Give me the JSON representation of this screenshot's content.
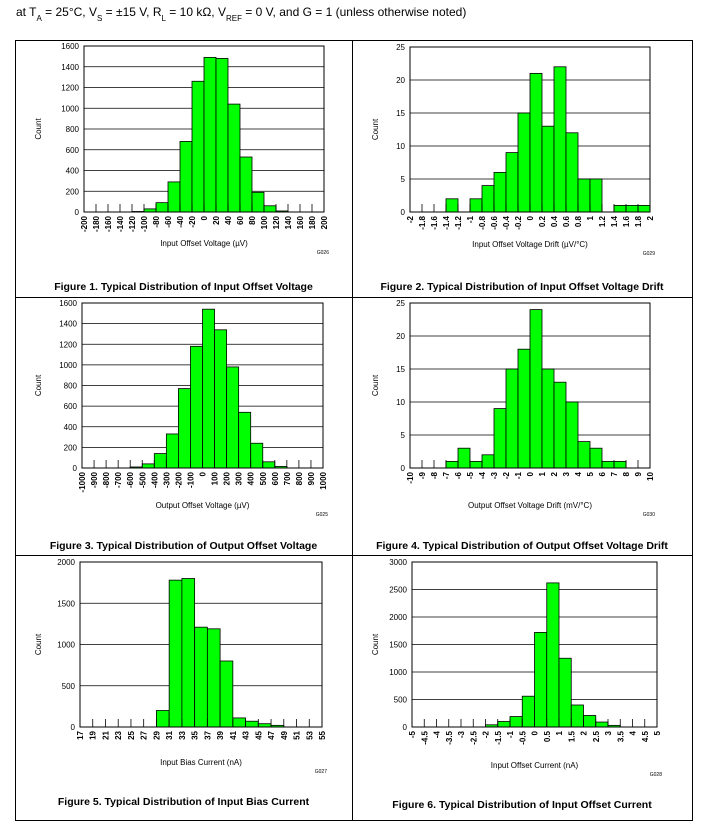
{
  "header": [
    "at T",
    "A",
    " = 25°C, V",
    "S",
    " = ±15 V, R",
    "L",
    " = 10 kΩ, V",
    "REF",
    " = 0 V, and G = 1 (unless otherwise noted)"
  ],
  "chart_data": [
    {
      "type": "histogram",
      "title": "Figure 1. Typical Distribution of Input Offset Voltage",
      "xlabel": "Input Offset Voltage (µV)",
      "ylabel": "Count",
      "annotation": "G026",
      "color": "#00ff00",
      "bins": [
        -200,
        -180,
        -160,
        -140,
        -120,
        -100,
        -80,
        -60,
        -40,
        -20,
        0,
        20,
        40,
        60,
        80,
        100,
        120,
        140,
        160,
        180,
        200
      ],
      "values": [
        0,
        0,
        0,
        0,
        5,
        30,
        90,
        290,
        680,
        1260,
        1490,
        1480,
        1040,
        530,
        190,
        60,
        10,
        0,
        0,
        0
      ],
      "xlim": [
        -200,
        200
      ],
      "xticks": [
        -200,
        -180,
        -160,
        -140,
        -120,
        -100,
        -80,
        -60,
        -40,
        -20,
        0,
        20,
        40,
        60,
        80,
        100,
        120,
        140,
        160,
        180,
        200
      ],
      "ylim": [
        0,
        1600
      ],
      "yticks": [
        0,
        200,
        400,
        600,
        800,
        1000,
        1200,
        1400,
        1600
      ],
      "grid": true
    },
    {
      "type": "histogram",
      "title": "Figure 2. Typical Distribution of Input Offset Voltage Drift",
      "xlabel": "Input Offset Voltage Drift (µV/°C)",
      "ylabel": "Count",
      "annotation": "G029",
      "color": "#00ff00",
      "bins": [
        -2,
        -1.8,
        -1.6,
        -1.4,
        -1.2,
        -1,
        -0.8,
        -0.6,
        -0.4,
        -0.2,
        0,
        0.2,
        0.4,
        0.6,
        0.8,
        1,
        1.2,
        1.4,
        1.6,
        1.8,
        2
      ],
      "values": [
        0,
        0,
        0,
        2,
        0,
        2,
        4,
        6,
        9,
        15,
        21,
        13,
        22,
        12,
        5,
        5,
        0,
        1,
        1,
        1
      ],
      "xlim": [
        -2,
        2
      ],
      "xticks": [
        -2,
        -1.8,
        -1.6,
        -1.4,
        -1.2,
        -1,
        -0.8,
        -0.6,
        -0.4,
        -0.2,
        0,
        0.2,
        0.4,
        0.6,
        0.8,
        1,
        1.2,
        1.4,
        1.6,
        1.8,
        2
      ],
      "ylim": [
        0,
        25
      ],
      "yticks": [
        0,
        5,
        10,
        15,
        20,
        25
      ],
      "grid": true
    },
    {
      "type": "histogram",
      "title": "Figure 3. Typical Distribution of Output Offset Voltage",
      "xlabel": "Output Offset Voltage (µV)",
      "ylabel": "Count",
      "annotation": "G025",
      "color": "#00ff00",
      "bins": [
        -1000,
        -900,
        -800,
        -700,
        -600,
        -500,
        -400,
        -300,
        -200,
        -100,
        0,
        100,
        200,
        300,
        400,
        500,
        600,
        700,
        800,
        900,
        1000
      ],
      "values": [
        0,
        0,
        0,
        0,
        10,
        40,
        140,
        330,
        770,
        1180,
        1540,
        1340,
        980,
        540,
        240,
        60,
        15,
        0,
        0,
        0
      ],
      "xlim": [
        -1000,
        1000
      ],
      "xticks": [
        -1000,
        -900,
        -800,
        -700,
        -600,
        -500,
        -400,
        -300,
        -200,
        -100,
        0,
        100,
        200,
        300,
        400,
        500,
        600,
        700,
        800,
        900,
        1000
      ],
      "ylim": [
        0,
        1600
      ],
      "yticks": [
        0,
        200,
        400,
        600,
        800,
        1000,
        1200,
        1400,
        1600
      ],
      "grid": true
    },
    {
      "type": "histogram",
      "title": "Figure 4. Typical Distribution of Output Offset Voltage Drift",
      "xlabel": "Output Offset Voltage Drift (mV/°C)",
      "ylabel": "Count",
      "annotation": "G030",
      "color": "#00ff00",
      "bins": [
        -10,
        -9,
        -8,
        -7,
        -6,
        -5,
        -4,
        -3,
        -2,
        -1,
        0,
        1,
        2,
        3,
        4,
        5,
        6,
        7,
        8,
        9,
        10
      ],
      "values": [
        0,
        0,
        0,
        1,
        3,
        1,
        2,
        9,
        15,
        18,
        24,
        15,
        13,
        10,
        4,
        3,
        1,
        1,
        0,
        0
      ],
      "xlim": [
        -10,
        10
      ],
      "xticks": [
        -10,
        -9,
        -8,
        -7,
        -6,
        -5,
        -4,
        -3,
        -2,
        -1,
        0,
        1,
        2,
        3,
        4,
        5,
        6,
        7,
        8,
        9,
        10
      ],
      "ylim": [
        0,
        25
      ],
      "yticks": [
        0,
        5,
        10,
        15,
        20,
        25
      ],
      "grid": true
    },
    {
      "type": "histogram",
      "title": "Figure 5. Typical Distribution of Input Bias Current",
      "xlabel": "Input Bias Current (nA)",
      "ylabel": "Count",
      "annotation": "G027",
      "color": "#00ff00",
      "bins": [
        17,
        19,
        21,
        23,
        25,
        27,
        29,
        31,
        33,
        35,
        37,
        39,
        41,
        43,
        45,
        47,
        49,
        51,
        53,
        55
      ],
      "values": [
        0,
        0,
        0,
        0,
        0,
        0,
        200,
        1780,
        1800,
        1210,
        1190,
        800,
        110,
        70,
        40,
        20,
        0,
        0,
        0
      ],
      "xlim": [
        17,
        55
      ],
      "xticks": [
        17,
        19,
        21,
        23,
        25,
        27,
        29,
        31,
        33,
        35,
        37,
        39,
        41,
        43,
        45,
        47,
        49,
        51,
        53,
        55
      ],
      "ylim": [
        0,
        2000
      ],
      "yticks": [
        0,
        500,
        1000,
        1500,
        2000
      ],
      "grid": true
    },
    {
      "type": "histogram",
      "title": "Figure 6. Typical Distribution of Input Offset Current",
      "xlabel": "Input Offset Current (nA)",
      "ylabel": "Count",
      "annotation": "G028",
      "color": "#00ff00",
      "bins": [
        -5,
        -4.5,
        -4,
        -3.5,
        -3,
        -2.5,
        -2,
        -1.5,
        -1,
        -0.5,
        0,
        0.5,
        1,
        1.5,
        2,
        2.5,
        3,
        3.5,
        4,
        4.5,
        5
      ],
      "values": [
        0,
        0,
        0,
        0,
        0,
        0,
        40,
        100,
        190,
        560,
        1720,
        2620,
        1250,
        400,
        210,
        90,
        30,
        0,
        0,
        0
      ],
      "xlim": [
        -5,
        5
      ],
      "xticks": [
        -5,
        -4.5,
        -4,
        -3.5,
        -3,
        -2.5,
        -2,
        -1.5,
        -1,
        -0.5,
        0,
        0.5,
        1,
        1.5,
        2,
        2.5,
        3,
        3.5,
        4,
        4.5,
        5
      ],
      "ylim": [
        0,
        3000
      ],
      "yticks": [
        0,
        500,
        1000,
        1500,
        2000,
        2500,
        3000
      ],
      "grid": true
    }
  ]
}
